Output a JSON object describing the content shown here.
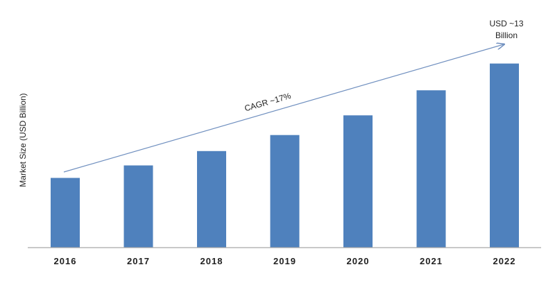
{
  "chart_data": {
    "type": "bar",
    "categories": [
      "2016",
      "2017",
      "2018",
      "2019",
      "2020",
      "2021",
      "2022"
    ],
    "values": [
      3.9,
      4.6,
      5.4,
      6.3,
      7.4,
      8.8,
      10.3
    ],
    "ylabel": "Market Size (USD Billion)",
    "xlabel": "",
    "ylim": [
      0,
      13
    ],
    "grid": false,
    "bar_color": "#4f81bd",
    "arrow_color": "#6f8fbf",
    "annotations": {
      "cagr": "CAGR ~17%",
      "end_value_line1": "USD ~13",
      "end_value_line2": "Billion"
    }
  }
}
